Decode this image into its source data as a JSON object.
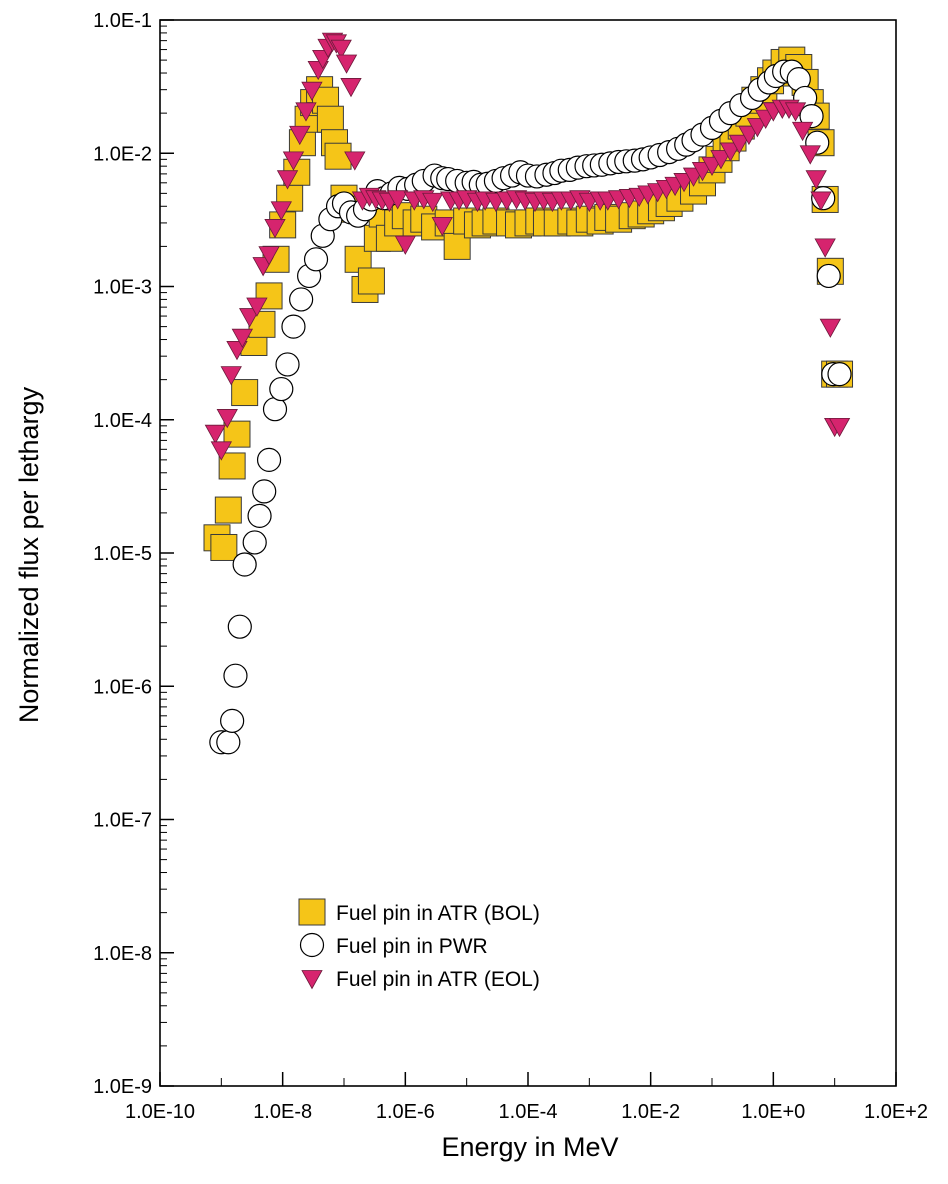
{
  "chart_data": {
    "type": "scatter",
    "title": "",
    "xlabel": "Energy in MeV",
    "ylabel": "Normalized flux per lethargy",
    "x_scale": "log",
    "y_scale": "log",
    "xlim": [
      1e-10,
      100
    ],
    "ylim": [
      1e-09,
      0.1
    ],
    "x_ticks": [
      1e-10,
      1e-08,
      1e-06,
      0.0001,
      0.01,
      1,
      100
    ],
    "x_tick_labels": [
      "1.0E-10",
      "1.0E-8",
      "1.0E-6",
      "1.0E-4",
      "1.0E-2",
      "1.0E+0",
      "1.0E+2"
    ],
    "y_ticks": [
      1e-09,
      1e-08,
      1e-07,
      1e-06,
      1e-05,
      0.0001,
      0.001,
      0.01,
      0.1
    ],
    "y_tick_labels": [
      "1.0E-9",
      "1.0E-8",
      "1.0E-7",
      "1.0E-6",
      "1.0E-5",
      "1.0E-4",
      "1.0E-3",
      "1.0E-2",
      "1.0E-1"
    ],
    "grid": false,
    "legend_position": "bottom-left",
    "series": [
      {
        "name": "Fuel pin in ATR (BOL)",
        "marker": "square",
        "color": "#F5C518",
        "x": [
          8.5e-10,
          1.1e-09,
          1.3e-09,
          1.5e-09,
          1.8e-09,
          2.4e-09,
          3.4e-09,
          4.6e-09,
          6e-09,
          7.8e-09,
          1e-08,
          1.3e-08,
          1.7e-08,
          2.1e-08,
          2.6e-08,
          3.2e-08,
          4e-08,
          5e-08,
          6e-08,
          7e-08,
          8e-08,
          1e-07,
          1.3e-07,
          1.7e-07,
          2.2e-07,
          2.8e-07,
          3.5e-07,
          4.2e-07,
          5.5e-07,
          7.5e-07,
          1e-06,
          1.5e-06,
          2e-06,
          3e-06,
          5e-06,
          7e-06,
          1e-05,
          1.5e-05,
          2e-05,
          3e-05,
          5e-05,
          7e-05,
          0.0001,
          0.00015,
          0.0002,
          0.0003,
          0.0005,
          0.0007,
          0.001,
          0.0015,
          0.002,
          0.003,
          0.005,
          0.007,
          0.01,
          0.015,
          0.02,
          0.03,
          0.05,
          0.07,
          0.1,
          0.13,
          0.17,
          0.22,
          0.3,
          0.4,
          0.5,
          0.7,
          0.9,
          1.1,
          1.5,
          2.0,
          2.6,
          3.3,
          4.0,
          5.0,
          6.0,
          7.0,
          8.5,
          10.0,
          12.0
        ],
        "y": [
          1.3e-05,
          1.1e-05,
          2.1e-05,
          4.5e-05,
          7.8e-05,
          0.00016,
          0.00038,
          0.00052,
          0.00085,
          0.0016,
          0.0029,
          0.0046,
          0.0072,
          0.012,
          0.018,
          0.024,
          0.03,
          0.025,
          0.018,
          0.012,
          0.0095,
          0.0046,
          0.0038,
          0.0016,
          0.00095,
          0.0011,
          0.0023,
          0.0035,
          0.0023,
          0.003,
          0.0034,
          0.003,
          0.0032,
          0.0028,
          0.003,
          0.002,
          0.0031,
          0.0029,
          0.003,
          0.0031,
          0.003,
          0.0029,
          0.003,
          0.0031,
          0.003,
          0.003,
          0.0031,
          0.003,
          0.0032,
          0.0031,
          0.0033,
          0.0032,
          0.0034,
          0.0035,
          0.0037,
          0.0039,
          0.0042,
          0.0046,
          0.0052,
          0.006,
          0.0075,
          0.009,
          0.011,
          0.013,
          0.016,
          0.02,
          0.025,
          0.03,
          0.035,
          0.04,
          0.048,
          0.05,
          0.044,
          0.034,
          0.024,
          0.019,
          0.012,
          0.0045,
          0.0013,
          0.00022,
          0.00022
        ]
      },
      {
        "name": "Fuel pin in PWR",
        "marker": "circle",
        "color": "#ffffff",
        "x": [
          1e-09,
          1.3e-09,
          1.5e-09,
          1.7e-09,
          2e-09,
          2.4e-09,
          3.5e-09,
          4.2e-09,
          5e-09,
          6e-09,
          7.5e-09,
          9.5e-09,
          1.2e-08,
          1.5e-08,
          2e-08,
          2.7e-08,
          3.5e-08,
          4.5e-08,
          6e-08,
          8e-08,
          1e-07,
          1.3e-07,
          1.7e-07,
          2.2e-07,
          2.8e-07,
          3.5e-07,
          4.5e-07,
          6e-07,
          8e-07,
          1.1e-06,
          1.5e-06,
          2e-06,
          3e-06,
          4e-06,
          5e-06,
          7e-06,
          1e-05,
          1.3e-05,
          1.7e-05,
          2.2e-05,
          3e-05,
          4e-05,
          5.5e-05,
          7.5e-05,
          0.0001,
          0.00014,
          0.0002,
          0.00027,
          0.00035,
          0.00048,
          0.00065,
          0.0009,
          0.0012,
          0.0016,
          0.0022,
          0.003,
          0.004,
          0.0055,
          0.0075,
          0.01,
          0.014,
          0.02,
          0.028,
          0.038,
          0.05,
          0.07,
          0.1,
          0.14,
          0.2,
          0.3,
          0.45,
          0.6,
          0.85,
          1.1,
          1.5,
          2.0,
          2.6,
          3.3,
          4.2,
          5.2,
          6.5,
          8.0,
          9.5,
          12.0
        ],
        "y": [
          3.8e-07,
          3.8e-07,
          5.5e-07,
          1.2e-06,
          2.8e-06,
          8.2e-06,
          1.2e-05,
          1.9e-05,
          2.9e-05,
          5e-05,
          0.00012,
          0.00017,
          0.00026,
          0.0005,
          0.0008,
          0.0012,
          0.0016,
          0.0024,
          0.0032,
          0.004,
          0.0042,
          0.0036,
          0.0034,
          0.0038,
          0.0045,
          0.0052,
          0.0046,
          0.005,
          0.0055,
          0.0054,
          0.0058,
          0.0062,
          0.0068,
          0.0065,
          0.0064,
          0.0062,
          0.006,
          0.0061,
          0.0058,
          0.0059,
          0.0062,
          0.0065,
          0.0068,
          0.0072,
          0.0068,
          0.0067,
          0.0069,
          0.0071,
          0.0074,
          0.0075,
          0.0078,
          0.008,
          0.0081,
          0.0082,
          0.0084,
          0.0086,
          0.0087,
          0.0088,
          0.009,
          0.0093,
          0.0097,
          0.0102,
          0.0108,
          0.0116,
          0.0125,
          0.0138,
          0.0155,
          0.0175,
          0.02,
          0.023,
          0.026,
          0.03,
          0.034,
          0.038,
          0.041,
          0.041,
          0.036,
          0.026,
          0.019,
          0.012,
          0.0046,
          0.0012,
          0.00022,
          0.00022
        ]
      },
      {
        "name": "Fuel pin in ATR (EOL)",
        "marker": "triangle-down",
        "color": "#D6246E",
        "x": [
          8e-10,
          1e-09,
          1.25e-09,
          1.45e-09,
          1.8e-09,
          2.2e-09,
          2.9e-09,
          3.8e-09,
          4.8e-09,
          6e-09,
          7.5e-09,
          9.5e-09,
          1.2e-08,
          1.5e-08,
          1.9e-08,
          2.4e-08,
          3e-08,
          3.8e-08,
          4.5e-08,
          5.5e-08,
          6.5e-08,
          7.5e-08,
          9e-08,
          1.1e-07,
          1.3e-07,
          1.5e-07,
          2e-07,
          2.6e-07,
          3.3e-07,
          4.2e-07,
          5.5e-07,
          7.5e-07,
          1e-06,
          1.4e-06,
          2e-06,
          2.8e-06,
          4e-06,
          5.5e-06,
          7.5e-06,
          1e-05,
          1.5e-05,
          2e-05,
          3e-05,
          4.5e-05,
          6.5e-05,
          9e-05,
          0.00013,
          0.00018,
          0.00025,
          0.00035,
          0.0005,
          0.0007,
          0.001,
          0.0015,
          0.002,
          0.003,
          0.0045,
          0.0065,
          0.009,
          0.013,
          0.018,
          0.025,
          0.035,
          0.05,
          0.07,
          0.1,
          0.14,
          0.2,
          0.28,
          0.4,
          0.55,
          0.75,
          1.0,
          1.4,
          1.8,
          2.3,
          3.0,
          4.0,
          5.0,
          6.0,
          7.0,
          8.5,
          10.0,
          12.0
        ],
        "y": [
          8e-05,
          6e-05,
          0.000105,
          0.00022,
          0.00034,
          0.00042,
          0.0006,
          0.00072,
          0.00145,
          0.00175,
          0.0028,
          0.0038,
          0.0065,
          0.009,
          0.014,
          0.021,
          0.03,
          0.043,
          0.052,
          0.063,
          0.07,
          0.068,
          0.062,
          0.048,
          0.032,
          0.009,
          0.0045,
          0.0048,
          0.0046,
          0.0045,
          0.0044,
          0.0046,
          0.0021,
          0.0045,
          0.0046,
          0.0044,
          0.0029,
          0.0045,
          0.0045,
          0.0046,
          0.0044,
          0.0045,
          0.0044,
          0.0045,
          0.0046,
          0.0045,
          0.0044,
          0.0045,
          0.0044,
          0.0045,
          0.0045,
          0.0046,
          0.0044,
          0.0045,
          0.0045,
          0.0046,
          0.0047,
          0.0048,
          0.005,
          0.0052,
          0.0055,
          0.0058,
          0.0062,
          0.0068,
          0.0075,
          0.0082,
          0.0092,
          0.0105,
          0.012,
          0.014,
          0.016,
          0.0185,
          0.021,
          0.022,
          0.022,
          0.021,
          0.015,
          0.01,
          0.0065,
          0.0045,
          0.002,
          0.0005,
          9e-05,
          9e-05
        ]
      }
    ]
  }
}
